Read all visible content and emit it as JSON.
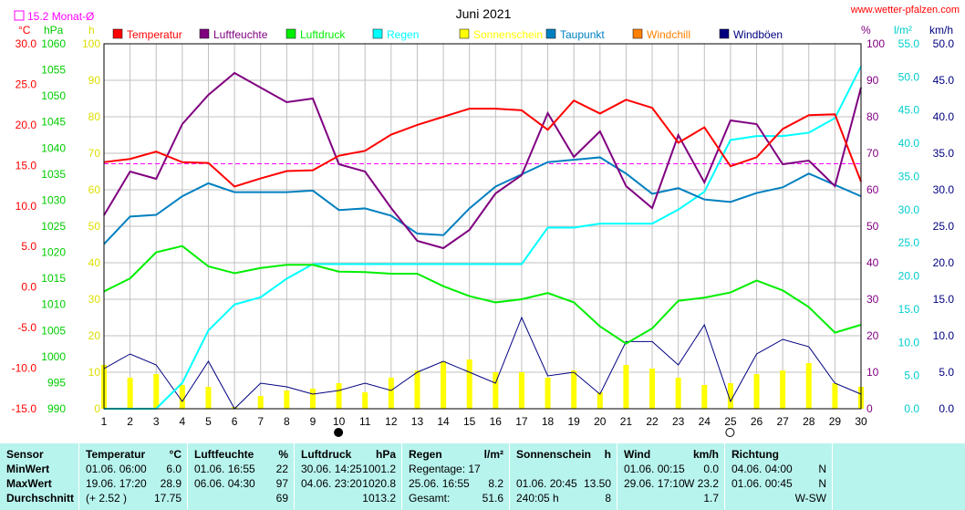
{
  "site": "www.wetter-pfalzen.com",
  "title": "Juni 2021",
  "colors": {
    "temperature": "#ff0000",
    "humidity": "#800080",
    "pressure": "#00ee00",
    "rain": "#00ffff",
    "sunshine": "#ffff00",
    "dewpoint": "#0080c0",
    "windchill": "#ff8000",
    "gust": "#000080",
    "grid": "#c0c0c0",
    "avgline": "#ff00ff"
  },
  "legend": [
    {
      "label": "Temperatur",
      "color": "#ff0000",
      "icon": "square"
    },
    {
      "label": "Luftfeuchte",
      "color": "#800080",
      "icon": "square"
    },
    {
      "label": "Luftdruck",
      "color": "#00ee00",
      "icon": "square"
    },
    {
      "label": "Regen",
      "color": "#00ffff",
      "icon": "square"
    },
    {
      "label": "Sonnenschein",
      "color": "#ffff00",
      "icon": "square"
    },
    {
      "label": "Taupunkt",
      "color": "#0080c0",
      "icon": "square"
    },
    {
      "label": "Windchill",
      "color": "#ff8000",
      "icon": "square"
    },
    {
      "label": "Windböen",
      "color": "#000080",
      "icon": "square"
    }
  ],
  "avg_note": "15.2 Monat-Ø",
  "axes": {
    "temp_unit": "°C",
    "pressure_unit": "hPa",
    "sun_unit": "h",
    "hum_unit": "%",
    "rain_unit": "l/m²",
    "wind_unit": "km/h",
    "temp_ticks": [
      "30.0",
      "25.0",
      "20.0",
      "15.0",
      "10.0",
      "5.0",
      "0.0",
      "-5.0",
      "-10.0",
      "-15.0"
    ],
    "pressure_ticks": [
      "1060",
      "1055",
      "1050",
      "1045",
      "1040",
      "1035",
      "1030",
      "1025",
      "1020",
      "1015",
      "1010",
      "1005",
      "1000",
      "995",
      "990"
    ],
    "sun_ticks": [
      "100",
      "90",
      "80",
      "70",
      "60",
      "50",
      "40",
      "30",
      "20",
      "10",
      "0"
    ],
    "hum_ticks": [
      "100",
      "90",
      "80",
      "70",
      "60",
      "50",
      "40",
      "30",
      "20",
      "10",
      "0"
    ],
    "rain_ticks": [
      "55.0",
      "50.0",
      "45.0",
      "40.0",
      "35.0",
      "30.0",
      "25.0",
      "20.0",
      "15.0",
      "10.0",
      "5.0",
      "0.0"
    ],
    "wind_ticks": [
      "50.0",
      "45.0",
      "40.0",
      "35.0",
      "30.0",
      "25.0",
      "20.0",
      "15.0",
      "10.0",
      "5.0",
      "0.0"
    ]
  },
  "chart_data": {
    "type": "line",
    "title": "Juni 2021",
    "x": [
      1,
      2,
      3,
      4,
      5,
      6,
      7,
      8,
      9,
      10,
      11,
      12,
      13,
      14,
      15,
      16,
      17,
      18,
      19,
      20,
      21,
      22,
      23,
      24,
      25,
      26,
      27,
      28,
      29,
      30
    ],
    "x_labels": [
      "1",
      "2",
      "3",
      "4",
      "5",
      "6",
      "7",
      "8",
      "9",
      "10",
      "11",
      "12",
      "13",
      "14",
      "15",
      "16",
      "17",
      "18",
      "19",
      "20",
      "21",
      "22",
      "23",
      "24",
      "25",
      "26",
      "27",
      "28",
      "29",
      "30"
    ],
    "moon_phases": [
      {
        "day": 10,
        "phase": "new"
      },
      {
        "day": 25,
        "phase": "full"
      }
    ],
    "temp_monthly_avg": 15.2,
    "series": [
      {
        "name": "Temperatur",
        "unit": "°C",
        "values": [
          15.4,
          15.8,
          16.7,
          15.4,
          15.3,
          12.4,
          13.4,
          14.3,
          14.4,
          16.2,
          16.8,
          18.8,
          20.0,
          21.0,
          22.0,
          22.0,
          21.8,
          19.4,
          23.0,
          21.4,
          23.1,
          22.1,
          17.8,
          19.7,
          14.9,
          16.0,
          19.5,
          21.2,
          21.3,
          13.0
        ]
      },
      {
        "name": "Luftfeuchte",
        "unit": "%",
        "values": [
          53,
          65,
          63,
          78,
          86,
          92,
          88,
          84,
          85,
          67,
          65,
          55,
          46,
          44,
          49,
          59,
          64,
          81,
          69,
          76,
          61,
          55,
          75,
          62,
          79,
          78,
          67,
          68,
          61,
          88
        ]
      },
      {
        "name": "Luftdruck",
        "unit": "hPa",
        "values": [
          1012.5,
          1015.0,
          1020.0,
          1021.2,
          1017.3,
          1016.0,
          1017.0,
          1017.6,
          1017.6,
          1016.3,
          1016.2,
          1015.9,
          1015.9,
          1013.5,
          1011.6,
          1010.4,
          1011.0,
          1012.2,
          1010.4,
          1005.8,
          1002.5,
          1005.4,
          1010.7,
          1011.3,
          1012.3,
          1014.6,
          1012.7,
          1009.5,
          1004.6,
          1006.1
        ]
      },
      {
        "name": "Regen",
        "unit": "l/m²",
        "values": [
          0,
          0,
          0,
          3.9,
          11.8,
          15.7,
          16.8,
          19.6,
          21.8,
          21.8,
          21.8,
          21.8,
          21.8,
          21.8,
          21.8,
          21.8,
          21.8,
          27.3,
          27.3,
          27.9,
          27.9,
          27.9,
          30.0,
          32.7,
          40.5,
          41.1,
          41.1,
          41.6,
          43.8,
          51.6
        ]
      },
      {
        "name": "Sonnenschein",
        "unit": "h",
        "values": [
          12.0,
          8.5,
          9.5,
          6.5,
          6.0,
          0.5,
          3.5,
          5.0,
          5.5,
          7.0,
          4.5,
          8.5,
          10.5,
          13.0,
          13.5,
          10.0,
          10.0,
          8.5,
          10.5,
          4.5,
          12.0,
          11.0,
          8.5,
          6.5,
          7.0,
          9.5,
          10.5,
          12.5,
          7.0,
          6.0
        ]
      },
      {
        "name": "Taupunkt",
        "unit": "°C",
        "values": [
          5.3,
          8.7,
          8.9,
          11.2,
          12.8,
          11.7,
          11.7,
          11.7,
          11.9,
          9.5,
          9.7,
          8.8,
          6.6,
          6.4,
          9.7,
          12.4,
          13.9,
          15.4,
          15.7,
          16.0,
          14.0,
          11.5,
          12.2,
          10.8,
          10.5,
          11.6,
          12.3,
          14.0,
          12.6,
          11.2
        ]
      },
      {
        "name": "Windböen",
        "unit": "km/h",
        "values": [
          5.5,
          7.5,
          6.0,
          1.0,
          6.5,
          0,
          3.5,
          3.0,
          2.0,
          2.5,
          3.5,
          2.5,
          5.0,
          6.5,
          5.0,
          3.5,
          12.5,
          4.5,
          5.0,
          2.0,
          9.2,
          9.2,
          6.0,
          11.5,
          1.0,
          7.5,
          9.5,
          8.5,
          3.5,
          2.0
        ]
      }
    ]
  },
  "stats": {
    "sensor": {
      "header": "Sensor",
      "rows": [
        "MinWert",
        "MaxWert",
        "Durchschnitt"
      ]
    },
    "temperature": {
      "header": "Temperatur",
      "unit": "°C",
      "rows": [
        [
          "01.06.  06:00",
          "6.0"
        ],
        [
          "19.06.  17:20",
          "28.9"
        ],
        [
          "(+ 2.52 )",
          "17.75"
        ]
      ]
    },
    "humidity": {
      "header": "Luftfeuchte",
      "unit": "%",
      "rows": [
        [
          "01.06.  16:55",
          "22"
        ],
        [
          "06.06.  04:30",
          "97"
        ],
        [
          "",
          "69"
        ]
      ]
    },
    "pressure": {
      "header": "Luftdruck",
      "unit": "hPa",
      "rows": [
        [
          "30.06.  14:25",
          "1001.2"
        ],
        [
          "04.06.  23:20",
          "1020.8"
        ],
        [
          "",
          "1013.2"
        ]
      ]
    },
    "rain": {
      "header": "Regen",
      "unit": "l/m²",
      "rows": [
        [
          "Regentage: 17",
          ""
        ],
        [
          "25.06.  16:55",
          "8.2"
        ],
        [
          "Gesamt:",
          "51.6"
        ]
      ]
    },
    "sunshine": {
      "header": "Sonnenschein",
      "unit": "h",
      "rows": [
        [
          "",
          ""
        ],
        [
          "01.06.  20:45",
          "13.50"
        ],
        [
          "240:05 h",
          "8"
        ]
      ]
    },
    "wind": {
      "header": "Wind",
      "unit": "km/h",
      "rows": [
        [
          "01.06.  00:15",
          "0.0"
        ],
        [
          "29.06.  17:10",
          "W 23.2"
        ],
        [
          "",
          "1.7"
        ]
      ]
    },
    "direction": {
      "header": "Richtung",
      "rows": [
        [
          "04.06.  04:00",
          "N"
        ],
        [
          "01.06.  00:45",
          "N"
        ],
        [
          "",
          "W-SW"
        ]
      ]
    }
  }
}
